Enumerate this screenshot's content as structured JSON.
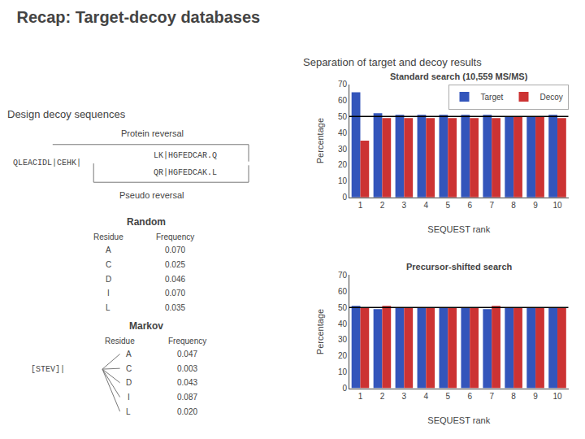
{
  "title": "Recap: Target-decoy databases",
  "annotations": [
    "Design decoy sequences",
    "Protein reversal",
    "QLEACIDL|CEHK|",
    "LK|HGFEDCAR.Q",
    "QR|HGFEDCAK.L",
    "Pseudo reversal",
    "Random",
    "Residue",
    "Frequency",
    "A",
    "0.070",
    "C",
    "0.025",
    "D",
    "0.046",
    "I",
    "0.070",
    "L",
    "0.035",
    "Markov",
    "Residue",
    "Frequency",
    "A",
    "0.047",
    "C",
    "0.003",
    "D",
    "0.043",
    "I",
    "0.087",
    "L",
    "0.020",
    "[STEV]|",
    "Separation of target and decoy results"
  ],
  "chart_data": [
    {
      "type": "bar",
      "title": "Standard search (10,559 MS/MS)",
      "x_label": "SEQUEST rank",
      "y_label": "Percentage",
      "categories": [
        "1",
        "2",
        "3",
        "4",
        "5",
        "6",
        "7",
        "8",
        "9",
        "10"
      ],
      "series": [
        {
          "name": "Target",
          "color": "#3355bb",
          "values": [
            65,
            52,
            51,
            51,
            51,
            51,
            51,
            50,
            50,
            51
          ]
        },
        {
          "name": "Decoy",
          "color": "#cc3333",
          "values": [
            35,
            49,
            49,
            49,
            49,
            49,
            49,
            50,
            50,
            49
          ]
        }
      ],
      "reference_line": 50,
      "ylim": [
        0,
        70
      ],
      "yticks": [
        0,
        10,
        20,
        30,
        40,
        50,
        60,
        70
      ],
      "grid": false,
      "legend": "upper right"
    },
    {
      "type": "bar",
      "title": "Precursor-shifted search",
      "x_label": "SEQUEST rank",
      "y_label": "Percentage",
      "categories": [
        "1",
        "2",
        "3",
        "4",
        "5",
        "6",
        "7",
        "8",
        "9",
        "10"
      ],
      "series": [
        {
          "name": "Target",
          "color": "#3355bb",
          "values": [
            51,
            49,
            50,
            50,
            50,
            50,
            49,
            50,
            50,
            50
          ]
        },
        {
          "name": "Decoy",
          "color": "#cc3333",
          "values": [
            50,
            51,
            50,
            50,
            50,
            50,
            51,
            50,
            50,
            50
          ]
        }
      ],
      "reference_line": 50,
      "ylim": [
        0,
        70
      ],
      "yticks": [
        0,
        10,
        20,
        30,
        40,
        50,
        60,
        70
      ],
      "grid": false
    }
  ]
}
